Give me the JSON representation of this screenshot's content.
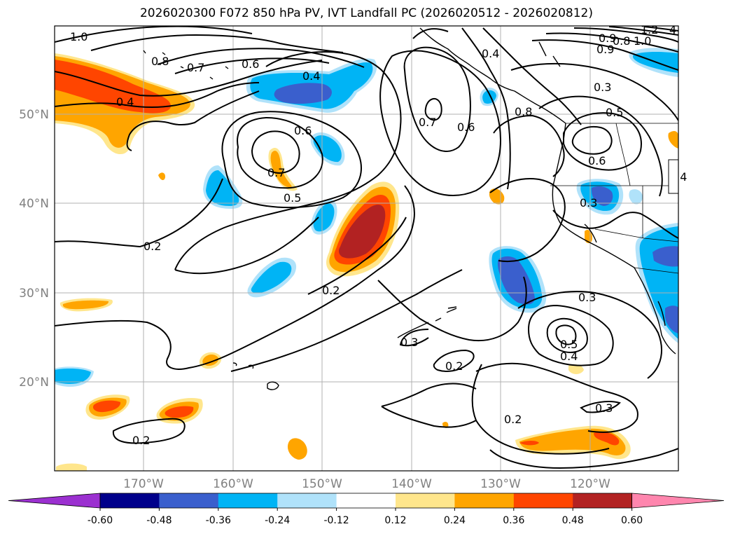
{
  "title": "2026020300 F072 850 hPa PV, IVT Landfall PC (2026020512 - 2026020812)",
  "colors": {
    "purple": "#9b30d0",
    "navy": "#00008b",
    "royal_blue": "#3a5fcd",
    "deep_sky": "#00b4f5",
    "light_sky": "#b0e2fa",
    "white": "#ffffff",
    "light_yellow": "#ffe68c",
    "orange": "#ffa500",
    "orange_red": "#ff4500",
    "firebrick": "#b22222",
    "pink": "#ff86ae",
    "grid": "#b0b0b0",
    "axis_label": "#808080",
    "contour": "#000000"
  },
  "chart_data": {
    "type": "map",
    "lat_ticks": [
      "50°N",
      "40°N",
      "30°N",
      "20°N"
    ],
    "lon_ticks": [
      "170°W",
      "160°W",
      "150°W",
      "140°W",
      "130°W",
      "120°W"
    ],
    "colorbar": {
      "ticks": [
        "-0.60",
        "-0.48",
        "-0.36",
        "-0.24",
        "-0.12",
        "0.12",
        "0.24",
        "0.36",
        "0.48",
        "0.60"
      ],
      "bins": [
        "#9b30d0",
        "#00008b",
        "#3a5fcd",
        "#00b4f5",
        "#b0e2fa",
        "#ffffff",
        "#ffe68c",
        "#ffa500",
        "#ff4500",
        "#b22222",
        "#ff86ae"
      ]
    },
    "contour_labels": [
      "1.0",
      "0.8",
      "0.7",
      "0.6",
      "0.4",
      "0.4",
      "0.6",
      "0.7",
      "0.5",
      "0.2",
      "0.2",
      "0.7",
      "0.6",
      "0.4",
      "0.8",
      "0.5",
      "0.6",
      "0.9",
      "0.3",
      "0.4",
      "0.3",
      "0.3",
      "0.5",
      "0.4",
      "0.3",
      "0.2",
      "0.2",
      "0.3",
      "0.2",
      "0.9",
      "0.8",
      "1.0",
      "1.2",
      "4"
    ]
  }
}
